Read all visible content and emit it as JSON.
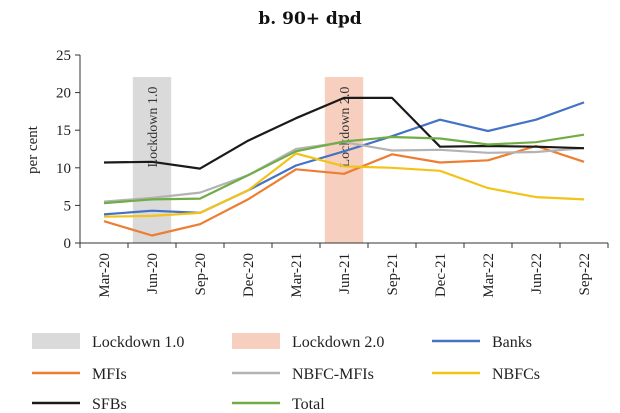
{
  "chart_data": {
    "type": "line",
    "title": "b. 90+ dpd",
    "ylabel": "per cent",
    "xlabel": "",
    "ylim": [
      0,
      25
    ],
    "yticks": [
      0,
      5,
      10,
      15,
      20,
      25
    ],
    "grid": false,
    "legend_position": "bottom",
    "categories": [
      "Mar-20",
      "Jun-20",
      "Sep-20",
      "Dec-20",
      "Mar-21",
      "Jun-21",
      "Sep-21",
      "Dec-21",
      "Mar-22",
      "Jun-22",
      "Sep-22"
    ],
    "bands": [
      {
        "name": "Lockdown 1.0",
        "label": "Lockdown 1.0",
        "from": 0.6,
        "to": 1.4,
        "color": "#dadada"
      },
      {
        "name": "Lockdown 2.0",
        "label": "Lockdown 2.0",
        "from": 4.6,
        "to": 5.4,
        "color": "#f7cfbe"
      }
    ],
    "series": [
      {
        "name": "Banks",
        "color": "#4472c4",
        "values": [
          3.8,
          4.3,
          4.0,
          7.0,
          10.3,
          12.2,
          14.2,
          16.4,
          14.9,
          16.4,
          18.7
        ]
      },
      {
        "name": "MFIs",
        "color": "#ed7d31",
        "values": [
          2.9,
          1.0,
          2.5,
          5.8,
          9.8,
          9.2,
          11.8,
          10.7,
          11.0,
          12.9,
          10.8
        ]
      },
      {
        "name": "NBFC-MFIs",
        "color": "#b3b3b3",
        "values": [
          5.5,
          6.0,
          6.7,
          9.0,
          12.5,
          13.4,
          12.3,
          12.4,
          12.0,
          12.1,
          12.6
        ]
      },
      {
        "name": "NBFCs",
        "color": "#f2c318",
        "values": [
          3.5,
          3.6,
          4.0,
          7.0,
          11.9,
          10.2,
          10.0,
          9.6,
          7.3,
          6.1,
          5.8
        ]
      },
      {
        "name": "SFBs",
        "color": "#1a1a1a",
        "values": [
          10.7,
          10.8,
          9.9,
          13.6,
          16.6,
          19.3,
          19.3,
          12.8,
          12.9,
          12.8,
          12.6
        ]
      },
      {
        "name": "Total",
        "color": "#70ad47",
        "values": [
          5.3,
          5.8,
          5.9,
          9.0,
          12.2,
          13.5,
          14.1,
          13.9,
          13.1,
          13.4,
          14.4
        ]
      }
    ],
    "legend": [
      "Lockdown 1.0",
      "Lockdown 2.0",
      "Banks",
      "MFIs",
      "NBFC-MFIs",
      "NBFCs",
      "SFBs",
      "Total"
    ]
  }
}
